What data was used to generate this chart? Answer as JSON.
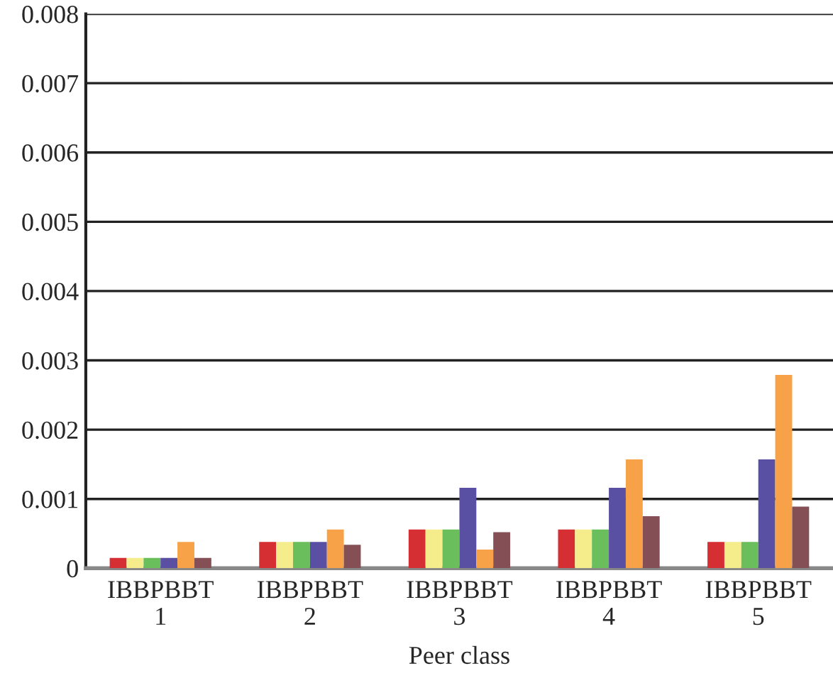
{
  "chart_data": {
    "type": "bar",
    "xlabel": "Peer class",
    "categories": [
      "IBBPBBT\n1",
      "IBBPBBT\n2",
      "IBBPBBT\n3",
      "IBBPBBT\n4",
      "IBBPBBT\n5"
    ],
    "series": [
      {
        "color": "#d62f33",
        "values": [
          0.00015,
          0.00038,
          0.00056,
          0.00056,
          0.00038
        ]
      },
      {
        "color": "#f5ed8c",
        "values": [
          0.00015,
          0.00038,
          0.00056,
          0.00056,
          0.00038
        ]
      },
      {
        "color": "#6abf5c",
        "values": [
          0.00015,
          0.00038,
          0.00056,
          0.00056,
          0.00038
        ]
      },
      {
        "color": "#5a50a3",
        "values": [
          0.00015,
          0.00038,
          0.00116,
          0.00116,
          0.00157
        ]
      },
      {
        "color": "#f7a248",
        "values": [
          0.00038,
          0.00056,
          0.00027,
          0.00157,
          0.00279
        ]
      },
      {
        "color": "#845055",
        "values": [
          0.00015,
          0.00034,
          0.00052,
          0.00075,
          0.00089
        ]
      }
    ],
    "ylim": [
      0,
      0.008
    ],
    "yticks": [
      0,
      0.001,
      0.002,
      0.003,
      0.004,
      0.005,
      0.006,
      0.007,
      0.008
    ],
    "grid": "y"
  }
}
